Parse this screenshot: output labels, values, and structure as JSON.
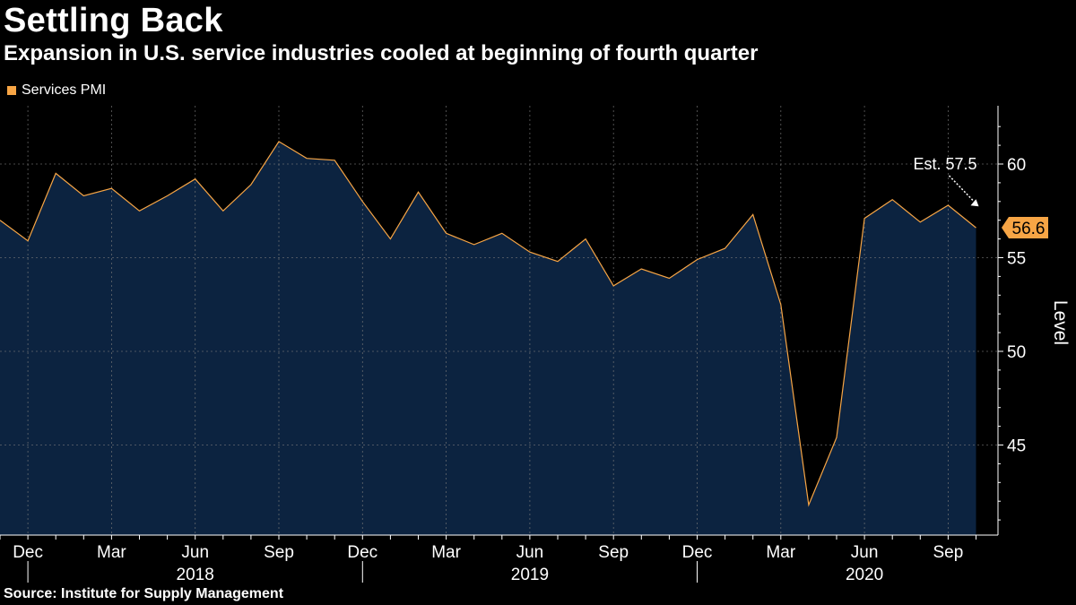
{
  "header": {
    "title": "Settling Back",
    "subtitle": "Expansion in U.S. service industries cooled at beginning of fourth quarter"
  },
  "legend": {
    "label": "Services PMI"
  },
  "source": "Source: Institute for Supply Management",
  "colors": {
    "line": "#f7a545",
    "fill": "#0c2340",
    "grid": "#7a7a7a",
    "background": "#000000"
  },
  "chart_data": {
    "type": "area",
    "title": "Settling Back",
    "subtitle": "Expansion in U.S. service industries cooled at beginning of fourth quarter",
    "ylabel": "Level",
    "xlabel": "",
    "ylim": [
      40,
      63
    ],
    "yticks": [
      45,
      50,
      55,
      60
    ],
    "series": [
      {
        "name": "Services PMI",
        "x": [
          "2017-11",
          "2017-12",
          "2018-01",
          "2018-02",
          "2018-03",
          "2018-04",
          "2018-05",
          "2018-06",
          "2018-07",
          "2018-08",
          "2018-09",
          "2018-10",
          "2018-11",
          "2018-12",
          "2019-01",
          "2019-02",
          "2019-03",
          "2019-04",
          "2019-05",
          "2019-06",
          "2019-07",
          "2019-08",
          "2019-09",
          "2019-10",
          "2019-11",
          "2019-12",
          "2020-01",
          "2020-02",
          "2020-03",
          "2020-04",
          "2020-05",
          "2020-06",
          "2020-07",
          "2020-08",
          "2020-09",
          "2020-10"
        ],
        "values": [
          57.0,
          55.9,
          59.5,
          58.3,
          58.7,
          57.5,
          58.3,
          59.2,
          57.5,
          58.9,
          61.2,
          60.3,
          60.2,
          58.0,
          56.0,
          58.5,
          56.3,
          55.7,
          56.3,
          55.3,
          54.8,
          56.0,
          53.5,
          54.4,
          53.9,
          54.9,
          55.5,
          57.3,
          52.5,
          41.8,
          45.4,
          57.1,
          58.1,
          56.9,
          57.8,
          56.6
        ]
      }
    ],
    "x_tick_labels": [
      "Dec",
      "Mar",
      "Jun",
      "Sep",
      "Dec",
      "Mar",
      "Jun",
      "Sep",
      "Dec",
      "Mar",
      "Jun",
      "Sep"
    ],
    "x_tick_months": [
      "2017-12",
      "2018-03",
      "2018-06",
      "2018-09",
      "2018-12",
      "2019-03",
      "2019-06",
      "2019-09",
      "2019-12",
      "2020-03",
      "2020-06",
      "2020-09"
    ],
    "year_labels": [
      "2018",
      "2019",
      "2020"
    ],
    "year_label_months": [
      "2018-06",
      "2019-06",
      "2020-06"
    ],
    "year_dividers": [
      "2017-12",
      "2018-12",
      "2019-12"
    ],
    "last_value_label": "56.6",
    "annotations": [
      {
        "text": "Est. 57.5",
        "value": 57.5,
        "month": "2020-10"
      }
    ]
  }
}
